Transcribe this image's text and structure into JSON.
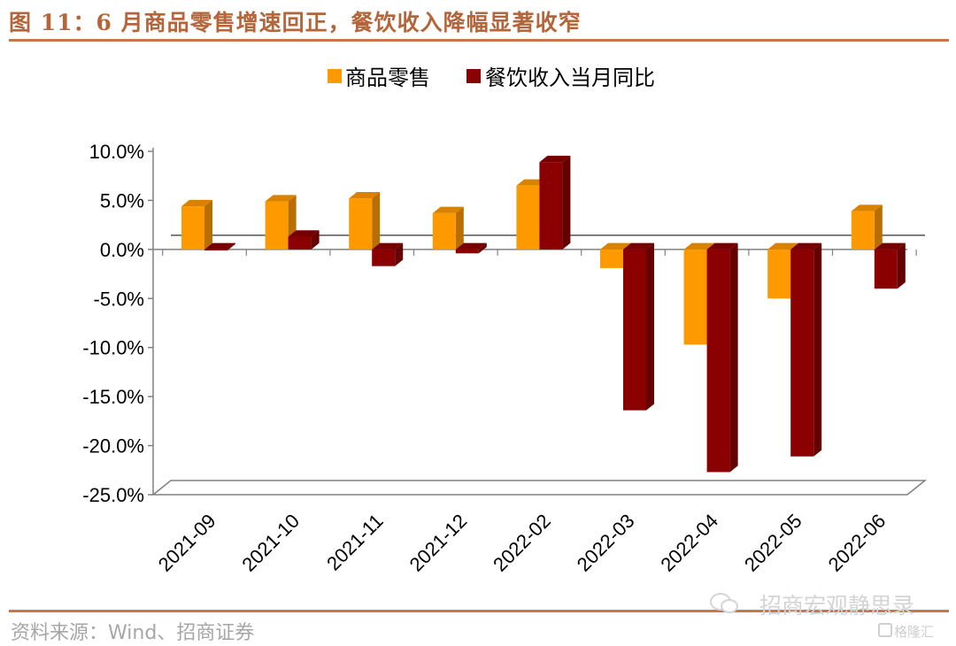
{
  "header": {
    "title": "图 11：6 月商品零售增速回正，餐饮收入降幅显著收窄"
  },
  "footer": {
    "source": "资料来源：Wind、招商证券"
  },
  "watermark": {
    "main": "招商宏观静思录",
    "sub": "格隆汇",
    "icon": "wechat-icon"
  },
  "colors": {
    "accent": "#c8764a",
    "series_0": "#ff9900",
    "series_1": "#8b0000"
  },
  "chart_data": {
    "type": "bar",
    "categories": [
      "2021-09",
      "2021-10",
      "2021-11",
      "2021-12",
      "2022-02",
      "2022-03",
      "2022-04",
      "2022-05",
      "2022-06"
    ],
    "series": [
      {
        "name": "商品零售",
        "values": [
          4.4,
          4.9,
          5.2,
          3.7,
          6.5,
          -1.9,
          -9.7,
          -5.0,
          3.9
        ]
      },
      {
        "name": "餐饮收入当月同比",
        "values": [
          -0.1,
          1.3,
          -1.7,
          -0.4,
          8.9,
          -16.4,
          -22.7,
          -21.1,
          -4.0
        ]
      }
    ],
    "ylim": [
      -25,
      10
    ],
    "yticks": [
      "10.0%",
      "5.0%",
      "0.0%",
      "-5.0%",
      "-10.0%",
      "-15.0%",
      "-20.0%",
      "-25.0%"
    ],
    "ytick_values": [
      10,
      5,
      0,
      -5,
      -10,
      -15,
      -20,
      -25
    ],
    "legend_position": "top-center",
    "grid": false,
    "style": "3d-clustered-column"
  }
}
